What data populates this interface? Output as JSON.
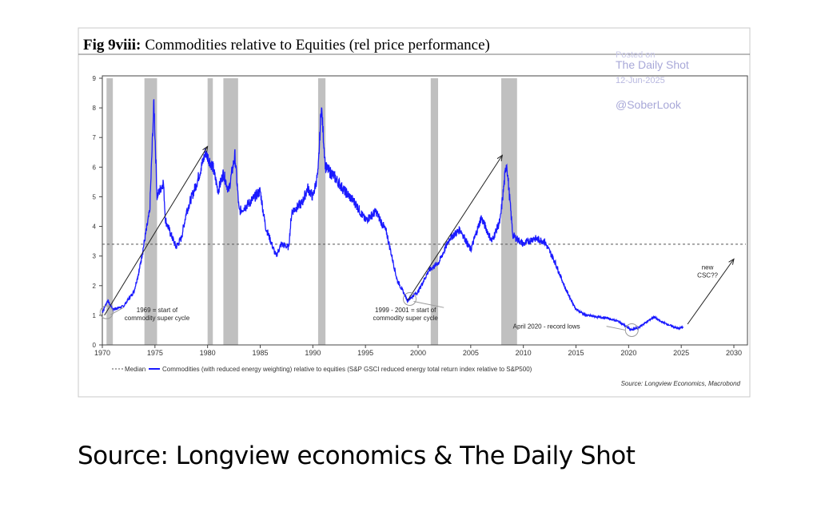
{
  "chart_data": {
    "type": "line",
    "title_prefix": "Fig 9viii:",
    "title": "Commodities relative to Equities (rel price performance)",
    "xlim": [
      1970,
      2030
    ],
    "ylim": [
      0,
      9
    ],
    "x_ticks": [
      "1970",
      "1975",
      "1980",
      "1985",
      "1990",
      "1995",
      "2000",
      "2005",
      "2010",
      "2015",
      "2020",
      "2025",
      "2030"
    ],
    "y_ticks": [
      "0",
      "1",
      "2",
      "3",
      "4",
      "5",
      "6",
      "7",
      "8",
      "9"
    ],
    "grid": false,
    "legend_position": "bottom",
    "median": 3.4,
    "recession_bands": [
      [
        1970.4,
        1971.0
      ],
      [
        1974.0,
        1975.2
      ],
      [
        1980.0,
        1980.5
      ],
      [
        1981.5,
        1982.9
      ],
      [
        1990.5,
        1991.2
      ],
      [
        2001.2,
        2001.9
      ],
      [
        2007.9,
        2009.4
      ]
    ],
    "series": [
      {
        "name": "Median",
        "color": "#555555",
        "style": "dotted"
      },
      {
        "name": "Commodities (with reduced energy weighting) relative to equities (S&P GSCI reduced energy total return index relative to S&P500)",
        "color": "#1a1aff",
        "x": [
          1970,
          1970.5,
          1971,
          1972,
          1973,
          1973.5,
          1974,
          1974.5,
          1974.9,
          1975.2,
          1975.8,
          1976,
          1977,
          1977.5,
          1978,
          1979,
          1979.8,
          1980.5,
          1981,
          1981.5,
          1982,
          1982.6,
          1983,
          1984,
          1985,
          1985.5,
          1986.5,
          1987,
          1987.7,
          1988,
          1989,
          1989.5,
          1990,
          1990.5,
          1990.8,
          1991.2,
          1992,
          1993,
          1994,
          1995,
          1996,
          1997,
          1997.5,
          1998,
          1999,
          2000,
          2001,
          2002,
          2003,
          2004,
          2005,
          2006,
          2007,
          2007.8,
          2008.4,
          2009,
          2010,
          2011,
          2012,
          2013,
          2014,
          2015,
          2016,
          2017,
          2018,
          2019,
          2020.3,
          2021,
          2022.4,
          2023,
          2024,
          2024.7,
          2025.2
        ],
        "y": [
          1.1,
          1.5,
          1.2,
          1.3,
          1.8,
          2.5,
          3.5,
          4.5,
          8.2,
          5.0,
          5.5,
          4.2,
          3.3,
          3.6,
          4.5,
          5.5,
          6.5,
          6.0,
          5.2,
          5.8,
          5.2,
          6.4,
          4.5,
          4.8,
          5.2,
          4.0,
          3.0,
          3.4,
          3.3,
          4.5,
          4.8,
          5.3,
          5.0,
          5.8,
          8.1,
          6.0,
          5.7,
          5.2,
          4.8,
          4.2,
          4.5,
          3.8,
          3.0,
          2.2,
          1.5,
          1.8,
          2.5,
          2.8,
          3.6,
          3.9,
          3.2,
          4.3,
          3.5,
          4.2,
          6.2,
          3.7,
          3.4,
          3.6,
          3.5,
          2.8,
          1.9,
          1.2,
          1.0,
          0.95,
          0.9,
          0.8,
          0.5,
          0.6,
          0.95,
          0.8,
          0.65,
          0.55,
          0.6
        ]
      }
    ],
    "arrows": [
      {
        "from": [
          1970.2,
          1.0
        ],
        "to": [
          1980,
          6.7
        ]
      },
      {
        "from": [
          1999,
          1.5
        ],
        "to": [
          2008,
          6.4
        ]
      },
      {
        "from": [
          2025.6,
          0.7
        ],
        "to": [
          2030,
          2.9
        ]
      }
    ],
    "annotations": [
      {
        "lines": [
          "1969 = start of",
          "commodity super cycle"
        ],
        "x": 1975.2,
        "y": 1.1,
        "circle": [
          1970.4,
          1.1
        ]
      },
      {
        "lines": [
          "1999 - 2001 = start of",
          "commodity super cycle"
        ],
        "x": 1998.8,
        "y": 1.1,
        "circle": [
          1999.2,
          1.55
        ]
      },
      {
        "lines": [
          "April 2020 - record lows"
        ],
        "x": 2012.2,
        "y": 0.55,
        "circle": [
          2020.3,
          0.5
        ]
      },
      {
        "lines": [
          "new",
          "CSC??"
        ],
        "x": 2027.5,
        "y": 2.55
      }
    ],
    "chart_source": "Source: Longview Economics, Macrobond"
  },
  "watermark": {
    "posted": "Posted on",
    "name": "The Daily Shot",
    "date": "12-Jun-2025",
    "handle": "@SoberLook"
  },
  "caption": "Source: Longview economics & The Daily Shot"
}
